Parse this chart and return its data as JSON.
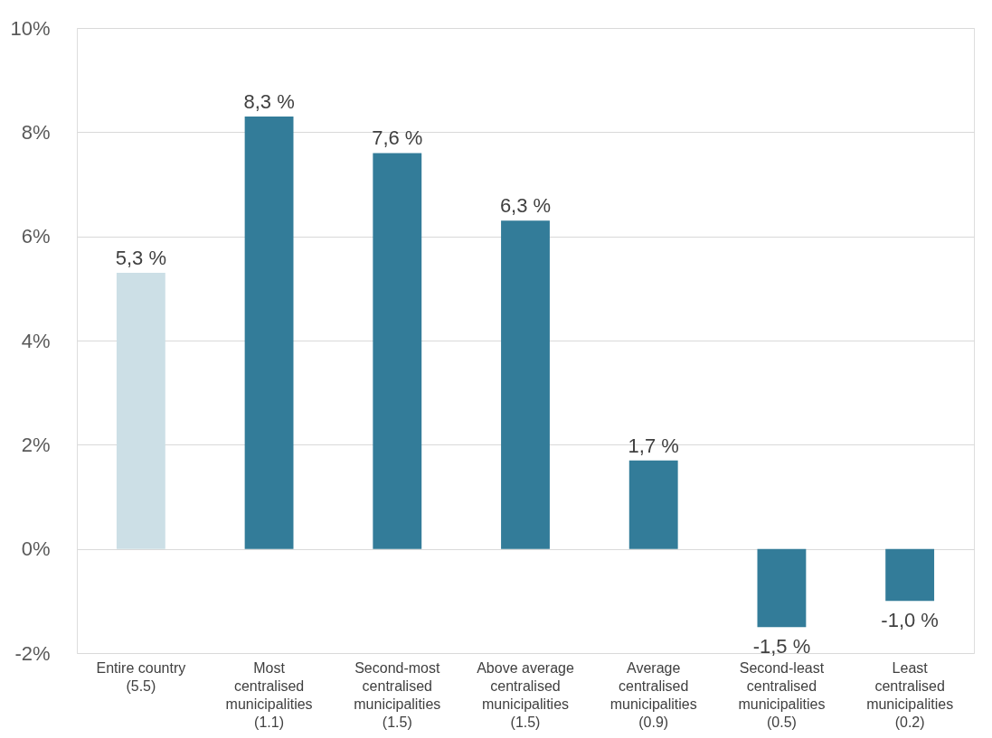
{
  "chart_data": {
    "type": "bar",
    "categories": [
      "Entire country\n(5.5)",
      "Most\ncentralised\nmunicipalities\n(1.1)",
      "Second-most\ncentralised\nmunicipalities\n(1.5)",
      "Above average\ncentralised\nmunicipalities\n(1.5)",
      "Average\ncentralised\nmunicipalities\n(0.9)",
      "Second-least\ncentralised\nmunicipalities\n(0.5)",
      "Least\ncentralised\nmunicipalities\n(0.2)"
    ],
    "values": [
      5.3,
      8.3,
      7.6,
      6.3,
      1.7,
      -1.5,
      -1.0
    ],
    "value_labels": [
      "5,3 %",
      "8,3 %",
      "7,6 %",
      "6,3 %",
      "1,7 %",
      "-1,5 %",
      "-1,0 %"
    ],
    "colors": [
      "#ccdfe6",
      "#337c99",
      "#337c99",
      "#337c99",
      "#337c99",
      "#337c99",
      "#337c99"
    ],
    "ylim": [
      -2,
      10
    ],
    "yticks": [
      {
        "value": -2,
        "label": "-2%"
      },
      {
        "value": 0,
        "label": "0%"
      },
      {
        "value": 2,
        "label": "2%"
      },
      {
        "value": 4,
        "label": "4%"
      },
      {
        "value": 6,
        "label": "6%"
      },
      {
        "value": 8,
        "label": "8%"
      },
      {
        "value": 10,
        "label": "10%"
      }
    ],
    "grid": "y"
  }
}
